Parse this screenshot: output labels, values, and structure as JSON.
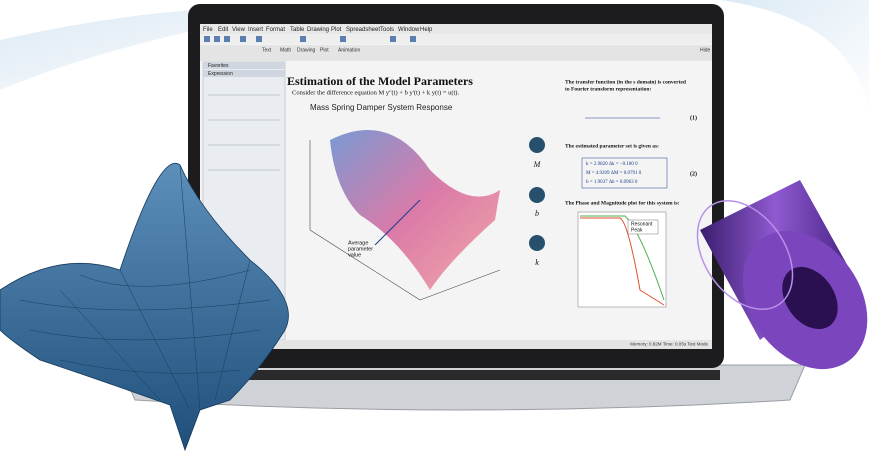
{
  "menu": [
    "File",
    "Edit",
    "View",
    "Insert",
    "Format",
    "Table",
    "Drawing",
    "Plot",
    "Spreadsheet",
    "Tools",
    "Window",
    "Help"
  ],
  "toolbar_tabs": [
    "Text",
    "Math",
    "Drawing",
    "Plot",
    "Animation"
  ],
  "hide": "Hide",
  "palettes": {
    "favorites": "Favorites",
    "expression": "Expression"
  },
  "document": {
    "heading": "Estimation of the Model Parameters",
    "intro": "Consider the difference equation M y''(t) + b y'(t) + k y(t) = u(t).",
    "plot_title": "Mass Spring Damper System Response",
    "annotation": [
      "Average",
      "parameter",
      "value"
    ],
    "knobs": [
      "M",
      "b",
      "k"
    ],
    "transfer_text": [
      "The transfer function (in the s domain) is converted",
      "to Fourier transform representation:"
    ],
    "eq1_label": "(1)",
    "param_text": "The estimated parameter set is given as:",
    "params": [
      "k = 2.9820   Δk = −0.180   0",
      "M = 4.9209   ΔM = 0.0791   0",
      "b = 1.9037   Δb = 0.0963   0"
    ],
    "eq2_label": "(2)",
    "bode_text": "The Phase and Magnitude plot for this system is:",
    "bode_annotation": [
      "Resonant",
      "Peak"
    ]
  },
  "status": "Memory: 0.82M   Time: 0.05s   Text Mode"
}
